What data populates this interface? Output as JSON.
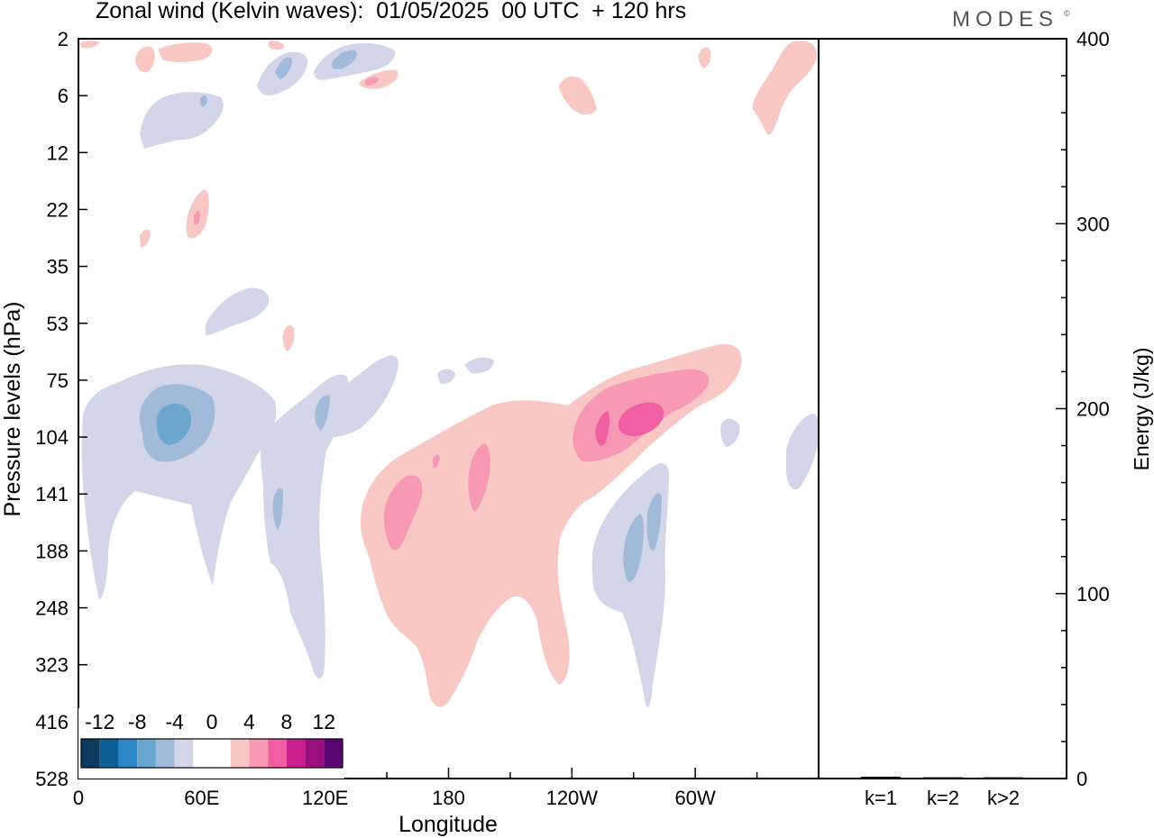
{
  "title": "Zonal wind (Kelvin waves):  01/05/2025  00 UTC  + 120 hrs",
  "brand": "MODES",
  "brand_mark": "©",
  "chart_data": [
    {
      "type": "heatmap",
      "xlabel": "Longitude",
      "ylabel": "Pressure levels (hPa)",
      "x_ticks": [
        "0",
        "60E",
        "120E",
        "180",
        "120W",
        "60W"
      ],
      "x_tick_degrees": [
        0,
        60,
        120,
        180,
        240,
        300
      ],
      "xlim": [
        0,
        360
      ],
      "y_ticks": [
        "2",
        "6",
        "12",
        "22",
        "35",
        "53",
        "75",
        "104",
        "141",
        "188",
        "248",
        "323",
        "416",
        "528"
      ],
      "colorbar": {
        "labels": [
          "-12",
          "-8",
          "-4",
          "0",
          "4",
          "8",
          "12"
        ],
        "colors": [
          "#0b3a5c",
          "#0d5f96",
          "#2a86c4",
          "#6aa6d0",
          "#a2bad9",
          "#d3d6e8",
          "#ffffff",
          "#ffffff",
          "#f9c8c4",
          "#f799b4",
          "#ef5fa2",
          "#cc1d8c",
          "#9a0e7e",
          "#5a0672"
        ]
      },
      "positive_color": "#f9c8c4",
      "positive_strong_color": "#f799b4",
      "positive_core_color": "#ef5fa2",
      "negative_color": "#d3d6e8",
      "negative_strong_color": "#a2bad9",
      "negative_core_color": "#6aa6d0",
      "negative_center_color": "#2a86c4"
    },
    {
      "type": "bar",
      "ylabel": "Energy (J/kg)",
      "categories": [
        "k=1",
        "k=2",
        "k>2"
      ],
      "values": [
        0.5,
        0.2,
        0.2
      ],
      "ylim": [
        0,
        400
      ],
      "y_ticks": [
        "0",
        "100",
        "200",
        "300",
        "400"
      ],
      "y_tick_values": [
        0,
        100,
        200,
        300,
        400
      ]
    }
  ]
}
